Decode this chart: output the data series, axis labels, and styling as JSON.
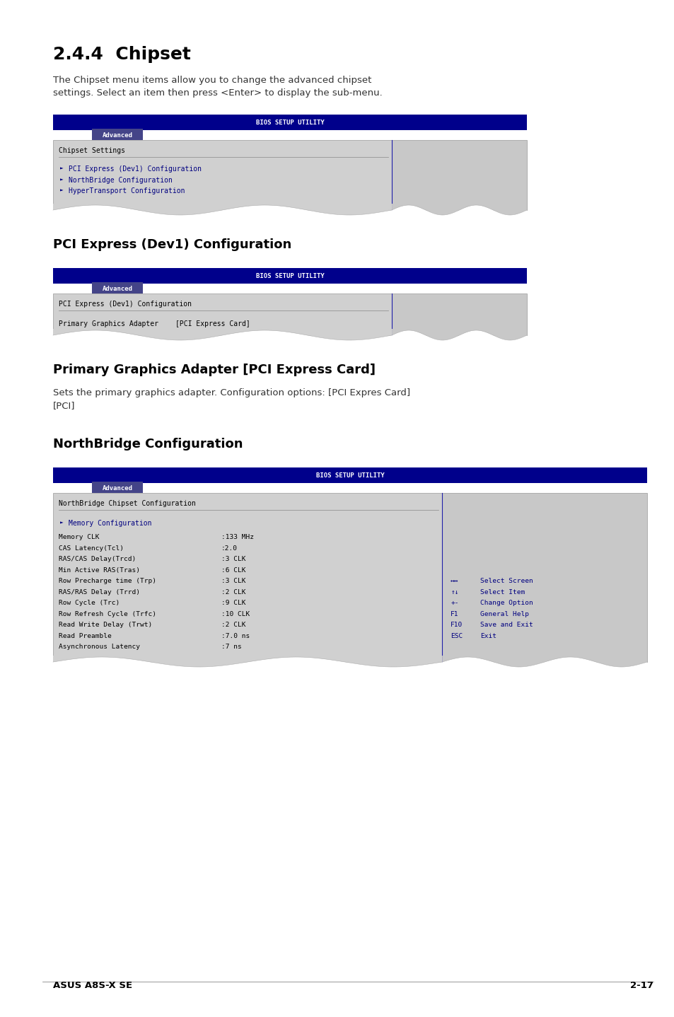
{
  "page_bg": "#ffffff",
  "title1": "2.4.4  Chipset",
  "para1": "The Chipset menu items allow you to change the advanced chipset\nsettings. Select an item then press <Enter> to display the sub-menu.",
  "bios_header_text": "BIOS SETUP UTILITY",
  "bios_header_bg": "#00008B",
  "tab_text": "Advanced",
  "screen1_section": "Chipset Settings",
  "screen1_items": [
    "PCI Express (Dev1) Configuration",
    "NorthBridge Configuration",
    "HyperTransport Configuration"
  ],
  "section2_title": "PCI Express (Dev1) Configuration",
  "screen2_section": "PCI Express (Dev1) Configuration",
  "screen2_row_label": "Primary Graphics Adapter",
  "screen2_row_value": "[PCI Express Card]",
  "section3_title": "Primary Graphics Adapter [PCI Express Card]",
  "para3": "Sets the primary graphics adapter. Configuration options: [PCI Expres Card]\n[PCI]",
  "section4_title": "NorthBridge Configuration",
  "screen3_section": "NorthBridge Chipset Configuration",
  "screen3_submenu": "Memory Configuration",
  "screen3_rows": [
    [
      "Memory CLK",
      ":133 MHz"
    ],
    [
      "CAS Latency(Tcl)",
      ":2.0"
    ],
    [
      "RAS/CAS Delay(Trcd)",
      ":3 CLK"
    ],
    [
      "Min Active RAS(Tras)",
      ":6 CLK"
    ],
    [
      "Row Precharge time (Trp)",
      ":3 CLK"
    ],
    [
      "RAS/RAS Delay (Trrd)",
      ":2 CLK"
    ],
    [
      "Row Cycle (Trc)",
      ":9 CLK"
    ],
    [
      "Row Refresh Cycle (Trfc)",
      ":10 CLK"
    ],
    [
      "Read Write Delay (Trwt)",
      ":2 CLK"
    ],
    [
      "Read Preamble",
      ":7.0 ns"
    ],
    [
      "Asynchronous Latency",
      ":7 ns"
    ]
  ],
  "screen3_help": [
    [
      "↔↔",
      "Select Screen"
    ],
    [
      "↑↓",
      "Select Item"
    ],
    [
      "+-",
      "Change Option"
    ],
    [
      "F1",
      "General Help"
    ],
    [
      "F10",
      "Save and Exit"
    ],
    [
      "ESC",
      "Exit"
    ]
  ],
  "footer_left": "ASUS A8S-X SE",
  "footer_right": "2-17"
}
